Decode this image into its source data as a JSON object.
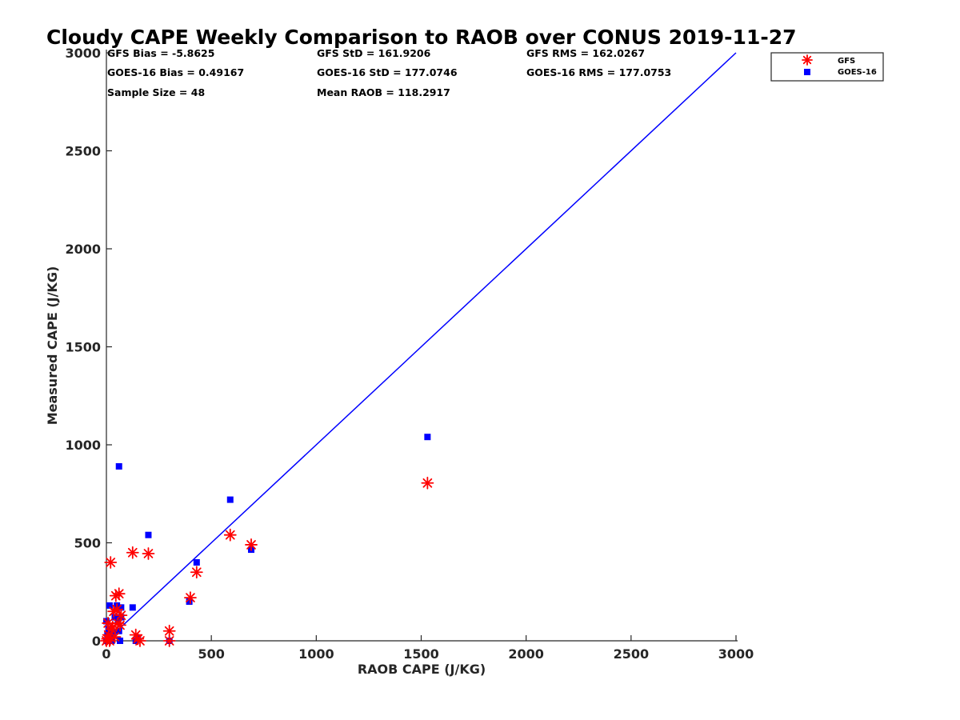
{
  "chart_data": {
    "type": "scatter",
    "title": "Cloudy CAPE Weekly Comparison to RAOB over CONUS 2019-11-27",
    "xlabel": "RAOB CAPE (J/KG)",
    "ylabel": "Measured CAPE (J/KG)",
    "xlim": [
      0,
      3000
    ],
    "ylim": [
      0,
      3000
    ],
    "xticks": [
      0,
      500,
      1000,
      1500,
      2000,
      2500,
      3000
    ],
    "yticks": [
      0,
      500,
      1000,
      1500,
      2000,
      2500,
      3000
    ],
    "xtick_labels": [
      "0",
      "500",
      "1000",
      "1500",
      "2000",
      "2500",
      "3000"
    ],
    "ytick_labels": [
      "0",
      "500",
      "1000",
      "1500",
      "2000",
      "2500",
      "3000"
    ],
    "grid": false,
    "legend_position": "top-right, outside plot",
    "reference_line": {
      "from": [
        0,
        0
      ],
      "to": [
        3000,
        3000
      ],
      "color": "#0000ff"
    },
    "stats": {
      "gfs_bias": "GFS Bias = -5.8625",
      "goes_bias": "GOES-16 Bias = 0.49167",
      "sample_size": "Sample Size = 48",
      "gfs_std": "GFS StD = 161.9206",
      "goes_std": "GOES-16 StD = 177.0746",
      "mean_raob": "Mean RAOB = 118.2917",
      "gfs_rms": "GFS RMS = 162.0267",
      "goes_rms": "GOES-16 RMS = 177.0753"
    },
    "series": [
      {
        "name": "GFS",
        "marker": "asterisk",
        "color": "#ff0000",
        "points": [
          [
            0,
            0
          ],
          [
            5,
            10
          ],
          [
            8,
            90
          ],
          [
            10,
            30
          ],
          [
            15,
            0
          ],
          [
            20,
            400
          ],
          [
            25,
            60
          ],
          [
            30,
            70
          ],
          [
            35,
            150
          ],
          [
            40,
            20
          ],
          [
            45,
            230
          ],
          [
            50,
            160
          ],
          [
            55,
            90
          ],
          [
            60,
            240
          ],
          [
            65,
            80
          ],
          [
            70,
            130
          ],
          [
            125,
            450
          ],
          [
            140,
            30
          ],
          [
            150,
            10
          ],
          [
            160,
            0
          ],
          [
            200,
            445
          ],
          [
            300,
            0
          ],
          [
            300,
            50
          ],
          [
            400,
            220
          ],
          [
            430,
            350
          ],
          [
            590,
            540
          ],
          [
            690,
            490
          ],
          [
            1530,
            805
          ]
        ]
      },
      {
        "name": "GOES-16",
        "marker": "square",
        "color": "#0000ff",
        "points": [
          [
            0,
            100
          ],
          [
            0,
            0
          ],
          [
            5,
            30
          ],
          [
            10,
            60
          ],
          [
            12,
            10
          ],
          [
            15,
            180
          ],
          [
            20,
            20
          ],
          [
            25,
            0
          ],
          [
            30,
            40
          ],
          [
            40,
            120
          ],
          [
            50,
            180
          ],
          [
            55,
            100
          ],
          [
            60,
            50
          ],
          [
            60,
            890
          ],
          [
            65,
            0
          ],
          [
            70,
            170
          ],
          [
            70,
            120
          ],
          [
            125,
            170
          ],
          [
            140,
            0
          ],
          [
            150,
            10
          ],
          [
            200,
            540
          ],
          [
            300,
            0
          ],
          [
            395,
            200
          ],
          [
            430,
            400
          ],
          [
            590,
            720
          ],
          [
            690,
            465
          ],
          [
            1530,
            1040
          ]
        ]
      }
    ]
  }
}
